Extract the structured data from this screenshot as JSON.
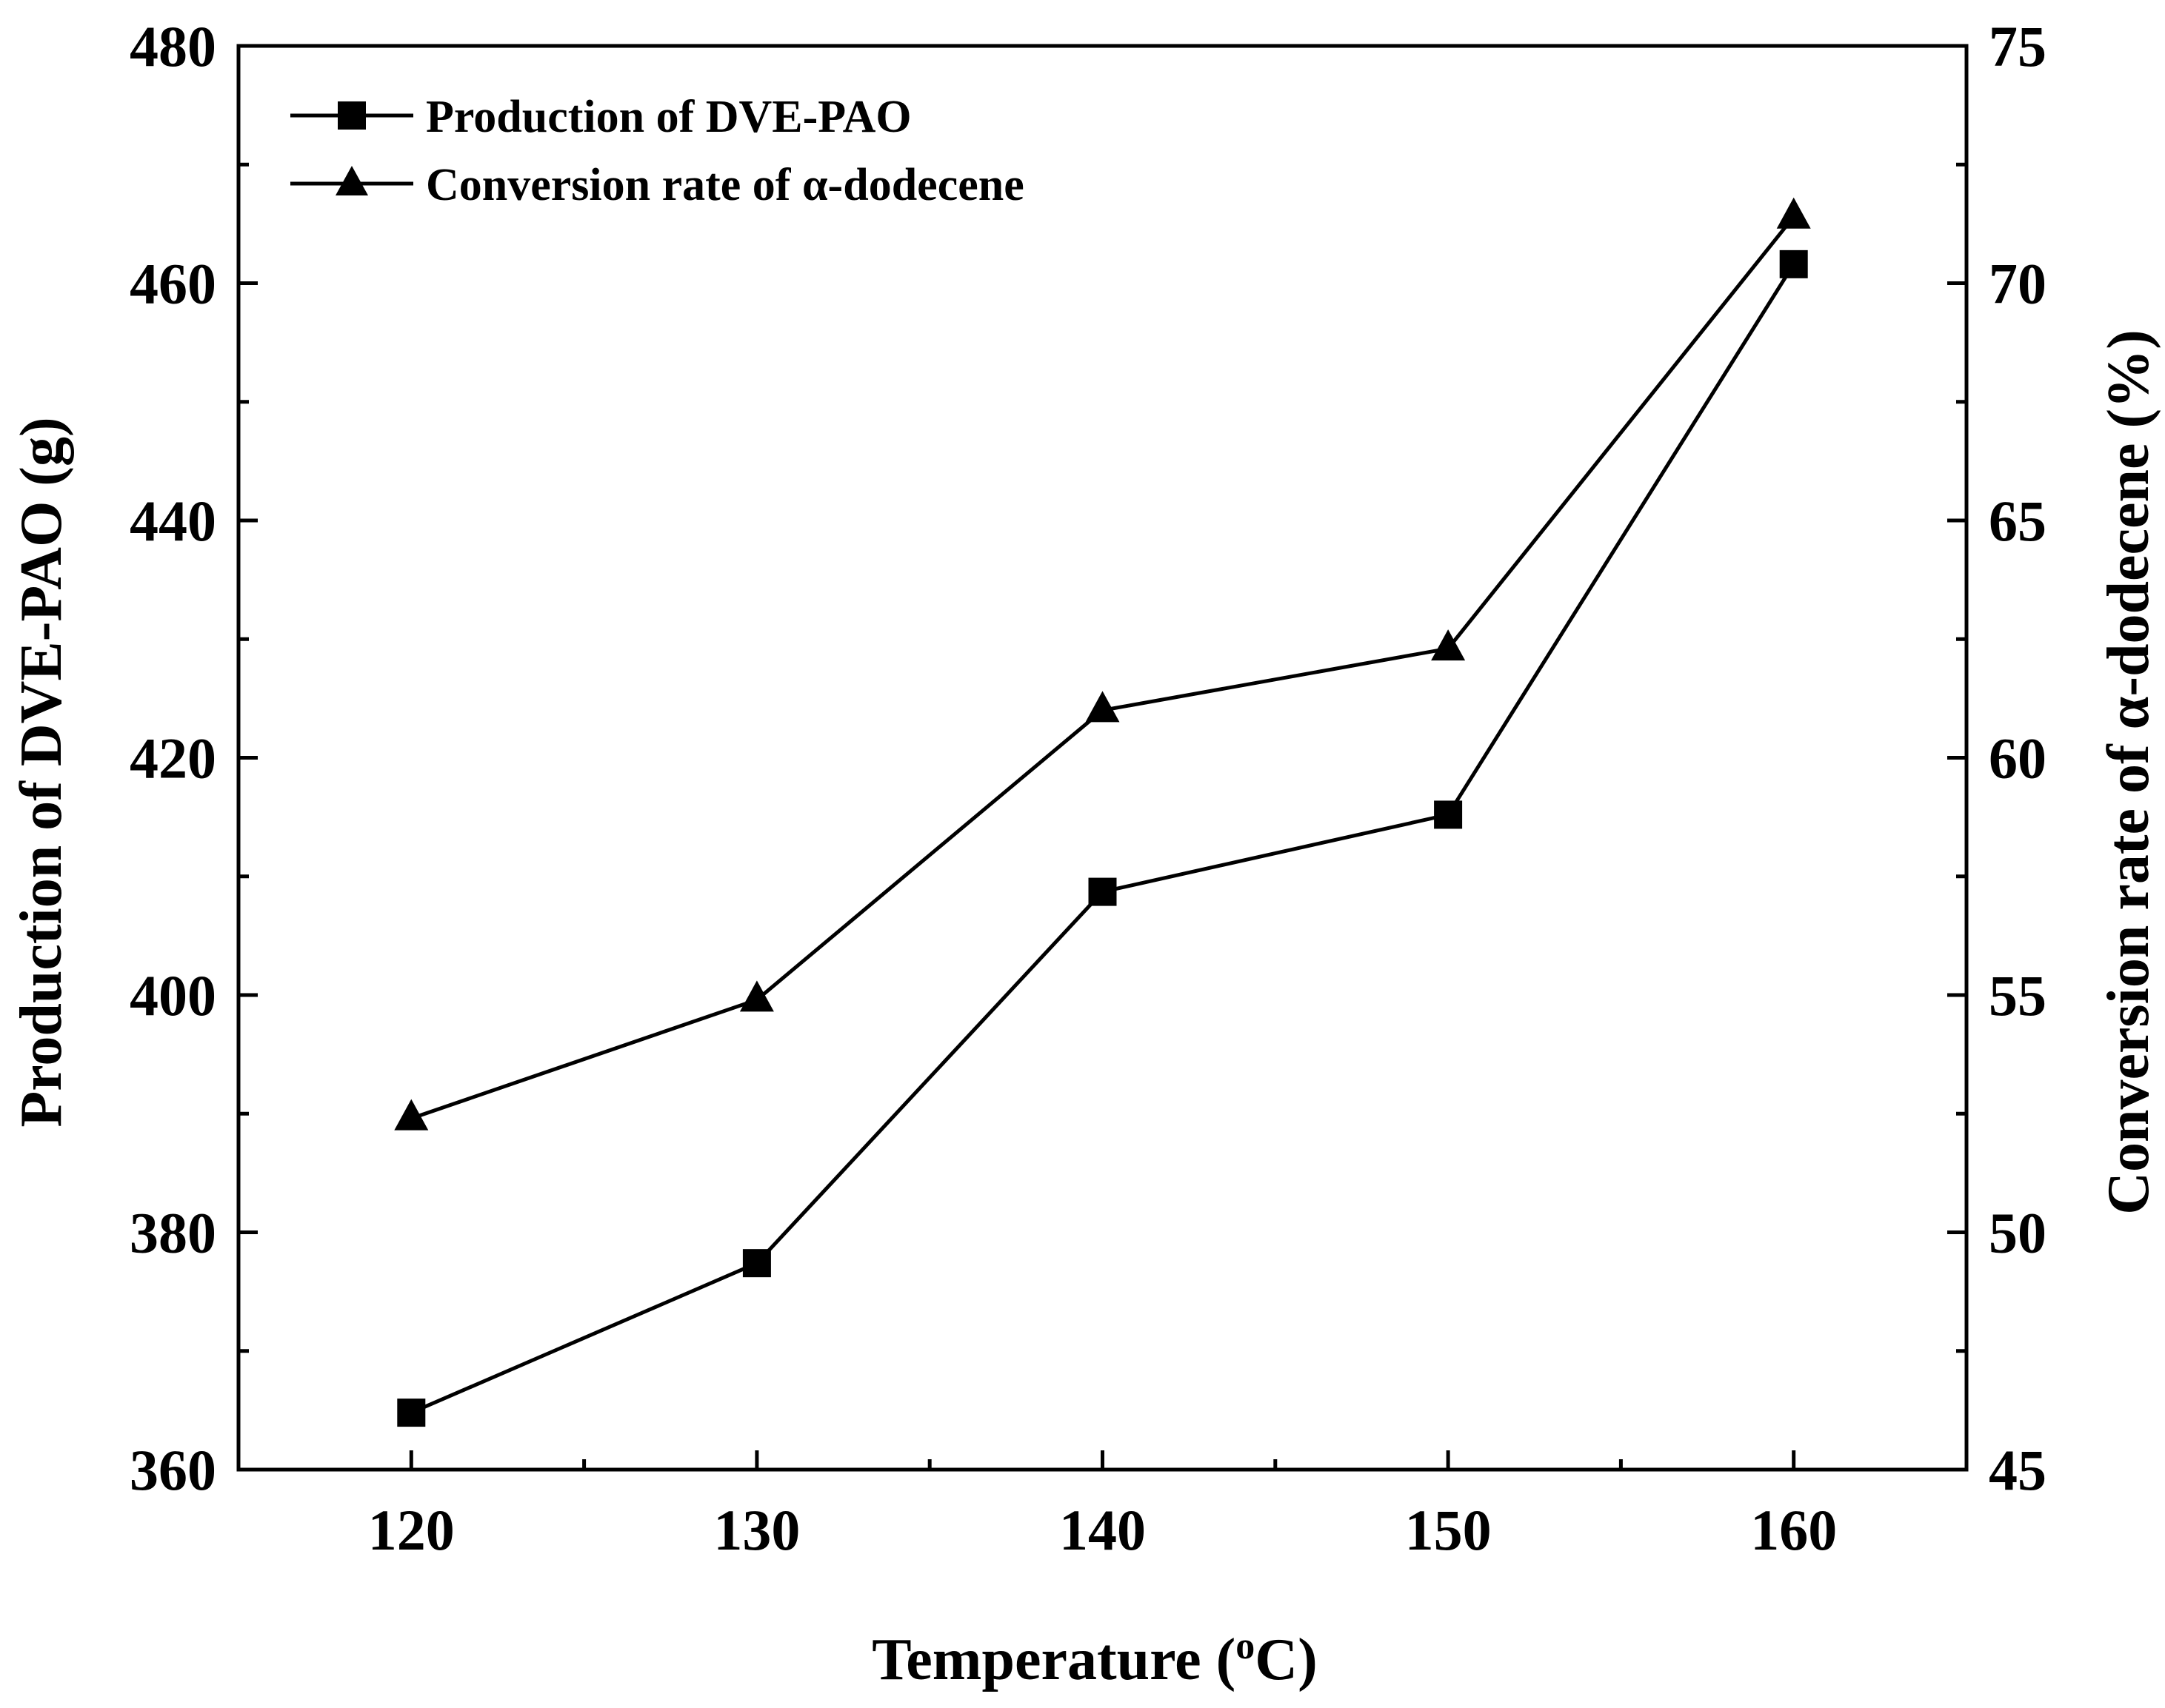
{
  "chart_data": {
    "type": "line",
    "title": "",
    "xlabel": "Temperature",
    "xlabel_unit_prefix": "(",
    "xlabel_unit_sup": "o",
    "xlabel_unit_suffix": "C)",
    "ylabel_left": "Production of DVE-PAO (g)",
    "ylabel_right": "Conversion rate of α-dodecene (%)",
    "x": [
      120,
      130,
      140,
      150,
      160
    ],
    "xlim": [
      115,
      165
    ],
    "xticks": [
      120,
      130,
      140,
      150,
      160
    ],
    "ylim_left": [
      360,
      480
    ],
    "yticks_left": [
      360,
      380,
      400,
      420,
      440,
      460,
      480
    ],
    "ylim_right": [
      45,
      75
    ],
    "yticks_right": [
      45,
      50,
      55,
      60,
      65,
      70,
      75
    ],
    "series": [
      {
        "name": "Production of DVE-PAO",
        "axis": "left",
        "marker": "square",
        "values": [
          364.8,
          377.4,
          408.7,
          415.2,
          461.6
        ]
      },
      {
        "name": "Conversion rate of α-dodecene",
        "axis": "right",
        "marker": "triangle",
        "values": [
          52.4,
          54.9,
          61.0,
          62.3,
          71.4
        ]
      }
    ],
    "legend_position": "top-left",
    "grid": false
  }
}
